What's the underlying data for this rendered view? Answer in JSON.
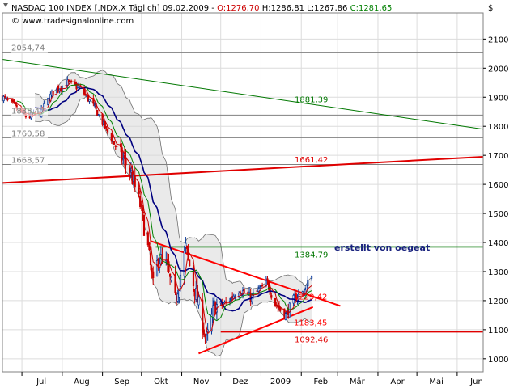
{
  "header": {
    "line1_prefix": "NASDAQ 100 INDEX [.NDX.X  Täglich] 09.02.2009 - ",
    "open": "O:1276,70",
    "high": " H:1286,81",
    "low": " L:1267,86",
    "close": " C:1281,65",
    "source": "© www.tradesignalonline.com",
    "currency": "$"
  },
  "colors": {
    "background": "#ffffff",
    "grid": "#dcdcdc",
    "plot_border": "#808080",
    "price": "#cc0000",
    "ma_short": "#cc0000",
    "ma_mid": "#008000",
    "ma_long": "#000080",
    "band_fill": "#d9d9d9",
    "band_line": "#707070",
    "red_level": "#e00000",
    "green_level": "#007700",
    "grey_level": "#808080",
    "annotation": "#1a237e"
  },
  "chart_data": {
    "type": "candlestick",
    "title": "NASDAQ 100 INDEX [.NDX.X  Täglich] 09.02.2009",
    "y_unit": "$",
    "ylim": [
      955,
      2190
    ],
    "y_ticks": [
      1000,
      1100,
      1200,
      1300,
      1400,
      1500,
      1600,
      1700,
      1800,
      1900,
      2000,
      2100
    ],
    "y_tick_labels": [
      "1000",
      "1100",
      "1200",
      "1300",
      "1400",
      "1500",
      "1600",
      "1700",
      "1800",
      "1900",
      "2000",
      "2100"
    ],
    "x_ticks": [
      {
        "label": "Jul",
        "date": "2008-07-01"
      },
      {
        "label": "Aug",
        "date": "2008-08-01"
      },
      {
        "label": "Sep",
        "date": "2008-09-01"
      },
      {
        "label": "Okt",
        "date": "2008-10-01"
      },
      {
        "label": "Nov",
        "date": "2008-11-01"
      },
      {
        "label": "Dez",
        "date": "2008-12-01"
      },
      {
        "label": "2009",
        "date": "2009-01-01"
      },
      {
        "label": "Feb",
        "date": "2009-02-01"
      },
      {
        "label": "Mär",
        "date": "2009-03-01"
      },
      {
        "label": "Apr",
        "date": "2009-04-01"
      },
      {
        "label": "Mai",
        "date": "2009-05-01"
      },
      {
        "label": "Jun",
        "date": "2009-06-01"
      }
    ],
    "xlim": [
      "2008-06-16",
      "2009-06-21"
    ],
    "price_anchors": [
      [
        "2008-06-16",
        1900
      ],
      [
        "2008-06-25",
        1870
      ],
      [
        "2008-07-05",
        1830
      ],
      [
        "2008-07-15",
        1845
      ],
      [
        "2008-07-25",
        1920
      ],
      [
        "2008-08-05",
        1950
      ],
      [
        "2008-08-15",
        1930
      ],
      [
        "2008-08-25",
        1870
      ],
      [
        "2008-09-05",
        1780
      ],
      [
        "2008-09-15",
        1700
      ],
      [
        "2008-09-22",
        1650
      ],
      [
        "2008-09-30",
        1530
      ],
      [
        "2008-10-06",
        1380
      ],
      [
        "2008-10-10",
        1250
      ],
      [
        "2008-10-14",
        1350
      ],
      [
        "2008-10-20",
        1320
      ],
      [
        "2008-10-27",
        1200
      ],
      [
        "2008-11-04",
        1380
      ],
      [
        "2008-11-10",
        1260
      ],
      [
        "2008-11-20",
        1060
      ],
      [
        "2008-11-26",
        1180
      ],
      [
        "2008-12-05",
        1190
      ],
      [
        "2008-12-15",
        1240
      ],
      [
        "2008-12-24",
        1210
      ],
      [
        "2009-01-06",
        1260
      ],
      [
        "2009-01-12",
        1190
      ],
      [
        "2009-01-20",
        1150
      ],
      [
        "2009-01-27",
        1210
      ],
      [
        "2009-02-03",
        1230
      ],
      [
        "2009-02-09",
        1282
      ]
    ],
    "last_bar": {
      "date": "2009-02-09",
      "open": 1276.7,
      "high": 1286.81,
      "low": 1267.86,
      "close": 1281.65
    },
    "ma_lengths": {
      "short": 5,
      "mid": 10,
      "long": 20
    },
    "band": {
      "length": 20,
      "width_sd": 2
    },
    "horizontal_levels": [
      {
        "value": 2054.74,
        "label": "2054,74",
        "color": "#808080",
        "label_side": "left",
        "start": "2008-06-16"
      },
      {
        "value": 1838.47,
        "label": "1838,47",
        "color": "#808080",
        "label_side": "left",
        "start": "2008-06-16"
      },
      {
        "value": 1760.58,
        "label": "1760,58",
        "color": "#808080",
        "label_side": "left",
        "start": "2008-06-16"
      },
      {
        "value": 1668.57,
        "label": "1668,57",
        "color": "#808080",
        "label_side": "left",
        "start": "2008-06-16"
      },
      {
        "value": 1384.79,
        "label": "1384,79",
        "color": "#007700",
        "label_side": "right",
        "start": "2008-10-12"
      },
      {
        "value": 1092.46,
        "label": "1092,46",
        "color": "#e00000",
        "label_side": "right",
        "start": "2008-12-01"
      }
    ],
    "trend_lines": [
      {
        "name": "green-long-trend",
        "color": "#007700",
        "width": 1,
        "points": [
          [
            "2008-06-16",
            2030
          ],
          [
            "2009-06-21",
            1790
          ]
        ],
        "label": "1881,39",
        "label_at": "2009-02-15"
      },
      {
        "name": "red-long-trend",
        "color": "#e00000",
        "width": 2,
        "points": [
          [
            "2008-06-16",
            1605
          ],
          [
            "2009-06-21",
            1695
          ]
        ],
        "label": "1661,42",
        "label_at": "2009-02-15"
      },
      {
        "name": "triangle-upper",
        "color": "#ff0000",
        "width": 2,
        "points": [
          [
            "2008-10-08",
            1405
          ],
          [
            "2009-03-03",
            1182
          ]
        ],
        "label": "1229,42",
        "label_at": "2009-02-09"
      },
      {
        "name": "triangle-lower",
        "color": "#ff0000",
        "width": 2,
        "points": [
          [
            "2008-11-14",
            1018
          ],
          [
            "2009-02-10",
            1178
          ]
        ],
        "label": "1183,45",
        "label_at": "2009-02-09"
      }
    ],
    "annotation": "erstellt von oegeat"
  }
}
